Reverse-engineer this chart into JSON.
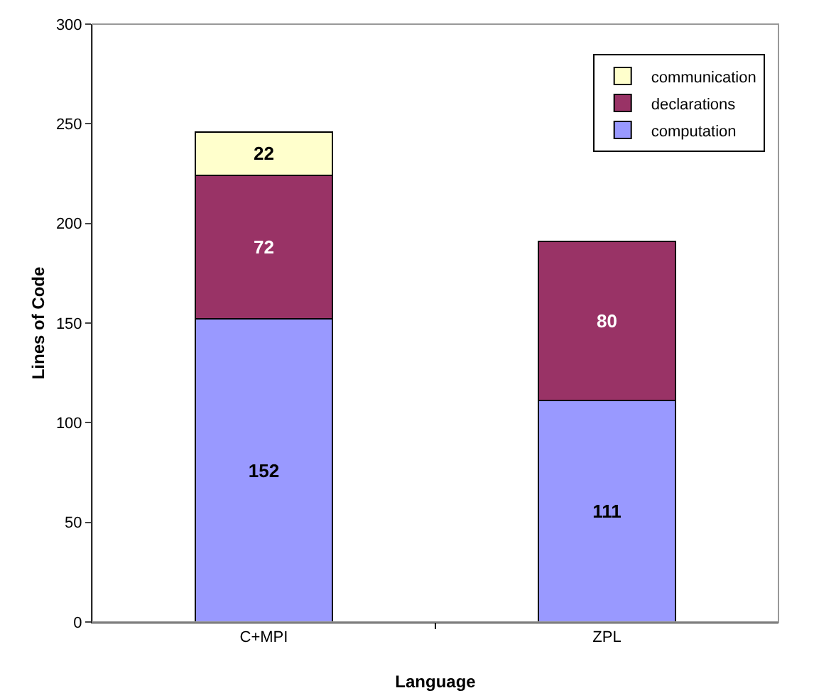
{
  "chart_data": {
    "type": "bar",
    "stacked": true,
    "xlabel": "Language",
    "ylabel": "Lines of Code",
    "categories": [
      "C+MPI",
      "ZPL"
    ],
    "series": [
      {
        "name": "computation",
        "color": "#9999ff",
        "values": [
          152,
          111
        ]
      },
      {
        "name": "declarations",
        "color": "#993366",
        "values": [
          72,
          80
        ]
      },
      {
        "name": "communication",
        "color": "#ffffcc",
        "values": [
          22,
          null
        ]
      }
    ],
    "ylim": [
      0,
      300
    ],
    "yticks": [
      0,
      50,
      100,
      150,
      200,
      250,
      300
    ],
    "grid": false,
    "legend": "top right",
    "data_labels": true
  }
}
